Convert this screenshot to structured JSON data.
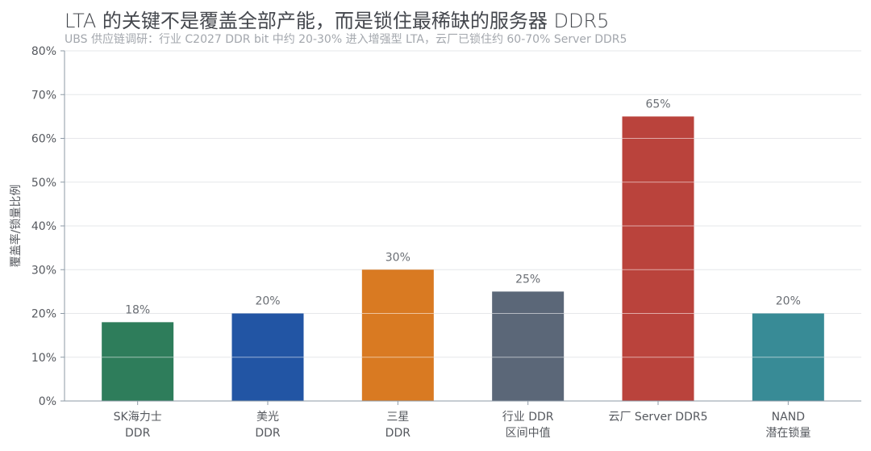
{
  "chart_data": {
    "type": "bar",
    "title": "LTA 的关键不是覆盖全部产能，而是锁住最稀缺的服务器 DDR5",
    "subtitle": "UBS 供应链调研：行业 C2027 DDR bit 中约 20-30% 进入增强型 LTA，云厂已锁住约 60-70% Server DDR5",
    "ylabel": "覆盖率/锁量比例",
    "xlabel": "",
    "ylim": [
      0,
      80
    ],
    "y_tick_step": 10,
    "y_tick_suffix": "%",
    "grid": true,
    "categories": [
      [
        "SK海力士",
        "DDR"
      ],
      [
        "美光",
        "DDR"
      ],
      [
        "三星",
        "DDR"
      ],
      [
        "行业 DDR",
        "区间中值"
      ],
      [
        "云厂 Server DDR5"
      ],
      [
        "NAND",
        "潜在锁量"
      ]
    ],
    "values": [
      18,
      20,
      30,
      25,
      65,
      20
    ],
    "data_labels": [
      "18%",
      "20%",
      "30%",
      "25%",
      "65%",
      "20%"
    ],
    "colors": [
      "#2e7d5b",
      "#2255a4",
      "#d97a22",
      "#5b6778",
      "#ba433c",
      "#388b96"
    ]
  }
}
